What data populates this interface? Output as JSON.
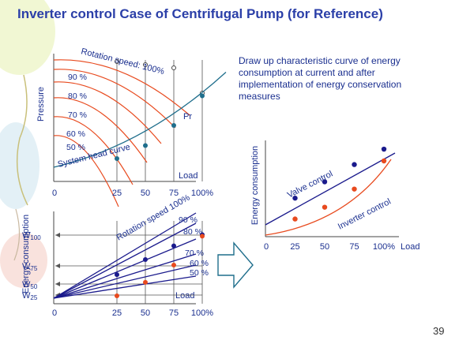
{
  "slide": {
    "title": "Inverter control Case of Centrifugal Pump (for Reference)",
    "description": "Draw up characteristic curve of energy consumption at current and after implementation of energy conservation measures",
    "page_number": "39"
  },
  "colors": {
    "title": "#2b3fa8",
    "axis_text": "#1a2f8f",
    "speed_curve": "#e84a1e",
    "system_curve": "#1f6e8c",
    "navy_line": "#1a1a8c",
    "red_dot": "#e84a1e",
    "blue_dot": "#0d3b8c"
  },
  "chart_data": [
    {
      "type": "line",
      "name": "pressure-chart",
      "ylabel": "Pressure",
      "xlabel": "Load",
      "x_ticks": [
        "0",
        "25",
        "50",
        "75",
        "100%"
      ],
      "curve_group_label": "Rotation speed: 100%",
      "speed_curve_labels": [
        "90 %",
        "80 %",
        "70 %",
        "60 %",
        "50 %"
      ],
      "system_curve_label": "System head curve",
      "point_label": "Pr",
      "system_curve_points": [
        {
          "load": 25,
          "pressure": 0.14
        },
        {
          "load": 50,
          "pressure": 0.25
        },
        {
          "load": 75,
          "pressure": 0.42
        },
        {
          "load": 100,
          "pressure": 0.67
        }
      ]
    },
    {
      "type": "line",
      "name": "energy-fan-chart",
      "ylabel": "Energy consumption",
      "xlabel": "Load",
      "x_ticks": [
        "0",
        "25",
        "50",
        "75",
        "100%"
      ],
      "y_levels": [
        "W100",
        "W75",
        "W50",
        "W25"
      ],
      "group_label": "Rotation speed 100%",
      "speed_line_labels": [
        "90 %",
        "80 %",
        "70 %",
        "60 %",
        "50 %"
      ],
      "navy_points": [
        {
          "load": 25,
          "energy": 0.36
        },
        {
          "load": 50,
          "energy": 0.59
        },
        {
          "load": 75,
          "energy": 0.8
        },
        {
          "load": 100,
          "energy": 0.97
        }
      ],
      "red_points": [
        {
          "load": 25,
          "energy": 0.0
        },
        {
          "load": 50,
          "energy": 0.22
        },
        {
          "load": 75,
          "energy": 0.5
        },
        {
          "load": 100,
          "energy": 0.97
        }
      ]
    },
    {
      "type": "line",
      "name": "comparison-chart",
      "ylabel": "Energy consumption",
      "xlabel": "Load",
      "x_ticks": [
        "0",
        "25",
        "50",
        "75",
        "100%"
      ],
      "series": [
        {
          "name": "Valve control",
          "values": [
            {
              "load": 25,
              "energy": 0.39
            },
            {
              "load": 50,
              "energy": 0.57
            },
            {
              "load": 75,
              "energy": 0.76
            },
            {
              "load": 100,
              "energy": 0.93
            }
          ]
        },
        {
          "name": "Inverter control",
          "values": [
            {
              "load": 25,
              "energy": 0.16
            },
            {
              "load": 50,
              "energy": 0.29
            },
            {
              "load": 75,
              "energy": 0.49
            },
            {
              "load": 100,
              "energy": 0.8
            }
          ]
        }
      ]
    }
  ]
}
